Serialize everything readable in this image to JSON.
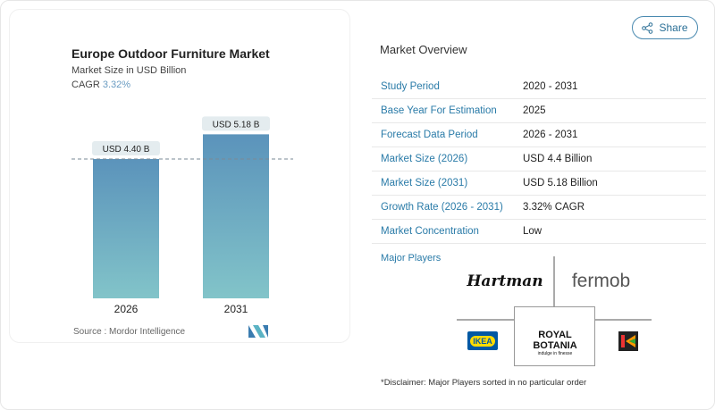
{
  "chart_data": {
    "type": "bar",
    "title": "Europe Outdoor Furniture Market",
    "subtitle": "Market Size in USD Billion",
    "cagr_label": "CAGR",
    "cagr_value": "3.32%",
    "categories": [
      "2026",
      "2031"
    ],
    "values": [
      4.4,
      5.18
    ],
    "data_labels": [
      "USD 4.40 B",
      "USD 5.18 B"
    ],
    "bar_colors": [
      "#5b93bb",
      "#82c4c9"
    ],
    "reference_line": "dashed at 2026 value",
    "source": "Source :  Mordor Intelligence"
  },
  "share_label": "Share",
  "overview": {
    "title": "Market Overview",
    "rows": [
      {
        "k": "Study Period",
        "v": "2020 - 2031"
      },
      {
        "k": "Base Year For Estimation",
        "v": "2025"
      },
      {
        "k": "Forecast Data Period",
        "v": "2026 - 2031"
      },
      {
        "k": "Market Size (2026)",
        "v": "USD 4.4 Billion"
      },
      {
        "k": "Market Size (2031)",
        "v": "USD 5.18 Billion"
      },
      {
        "k": "Growth Rate (2026 - 2031)",
        "v": "3.32% CAGR"
      },
      {
        "k": "Market Concentration",
        "v": "Low"
      }
    ],
    "major_players_label": "Major Players",
    "players": [
      "Hartman",
      "fermob",
      "IKEA",
      "ROYAL BOTANIA",
      "Kettler"
    ],
    "royal_tagline": "indulge in finesse",
    "disclaimer": "*Disclaimer: Major Players sorted in no particular order"
  }
}
